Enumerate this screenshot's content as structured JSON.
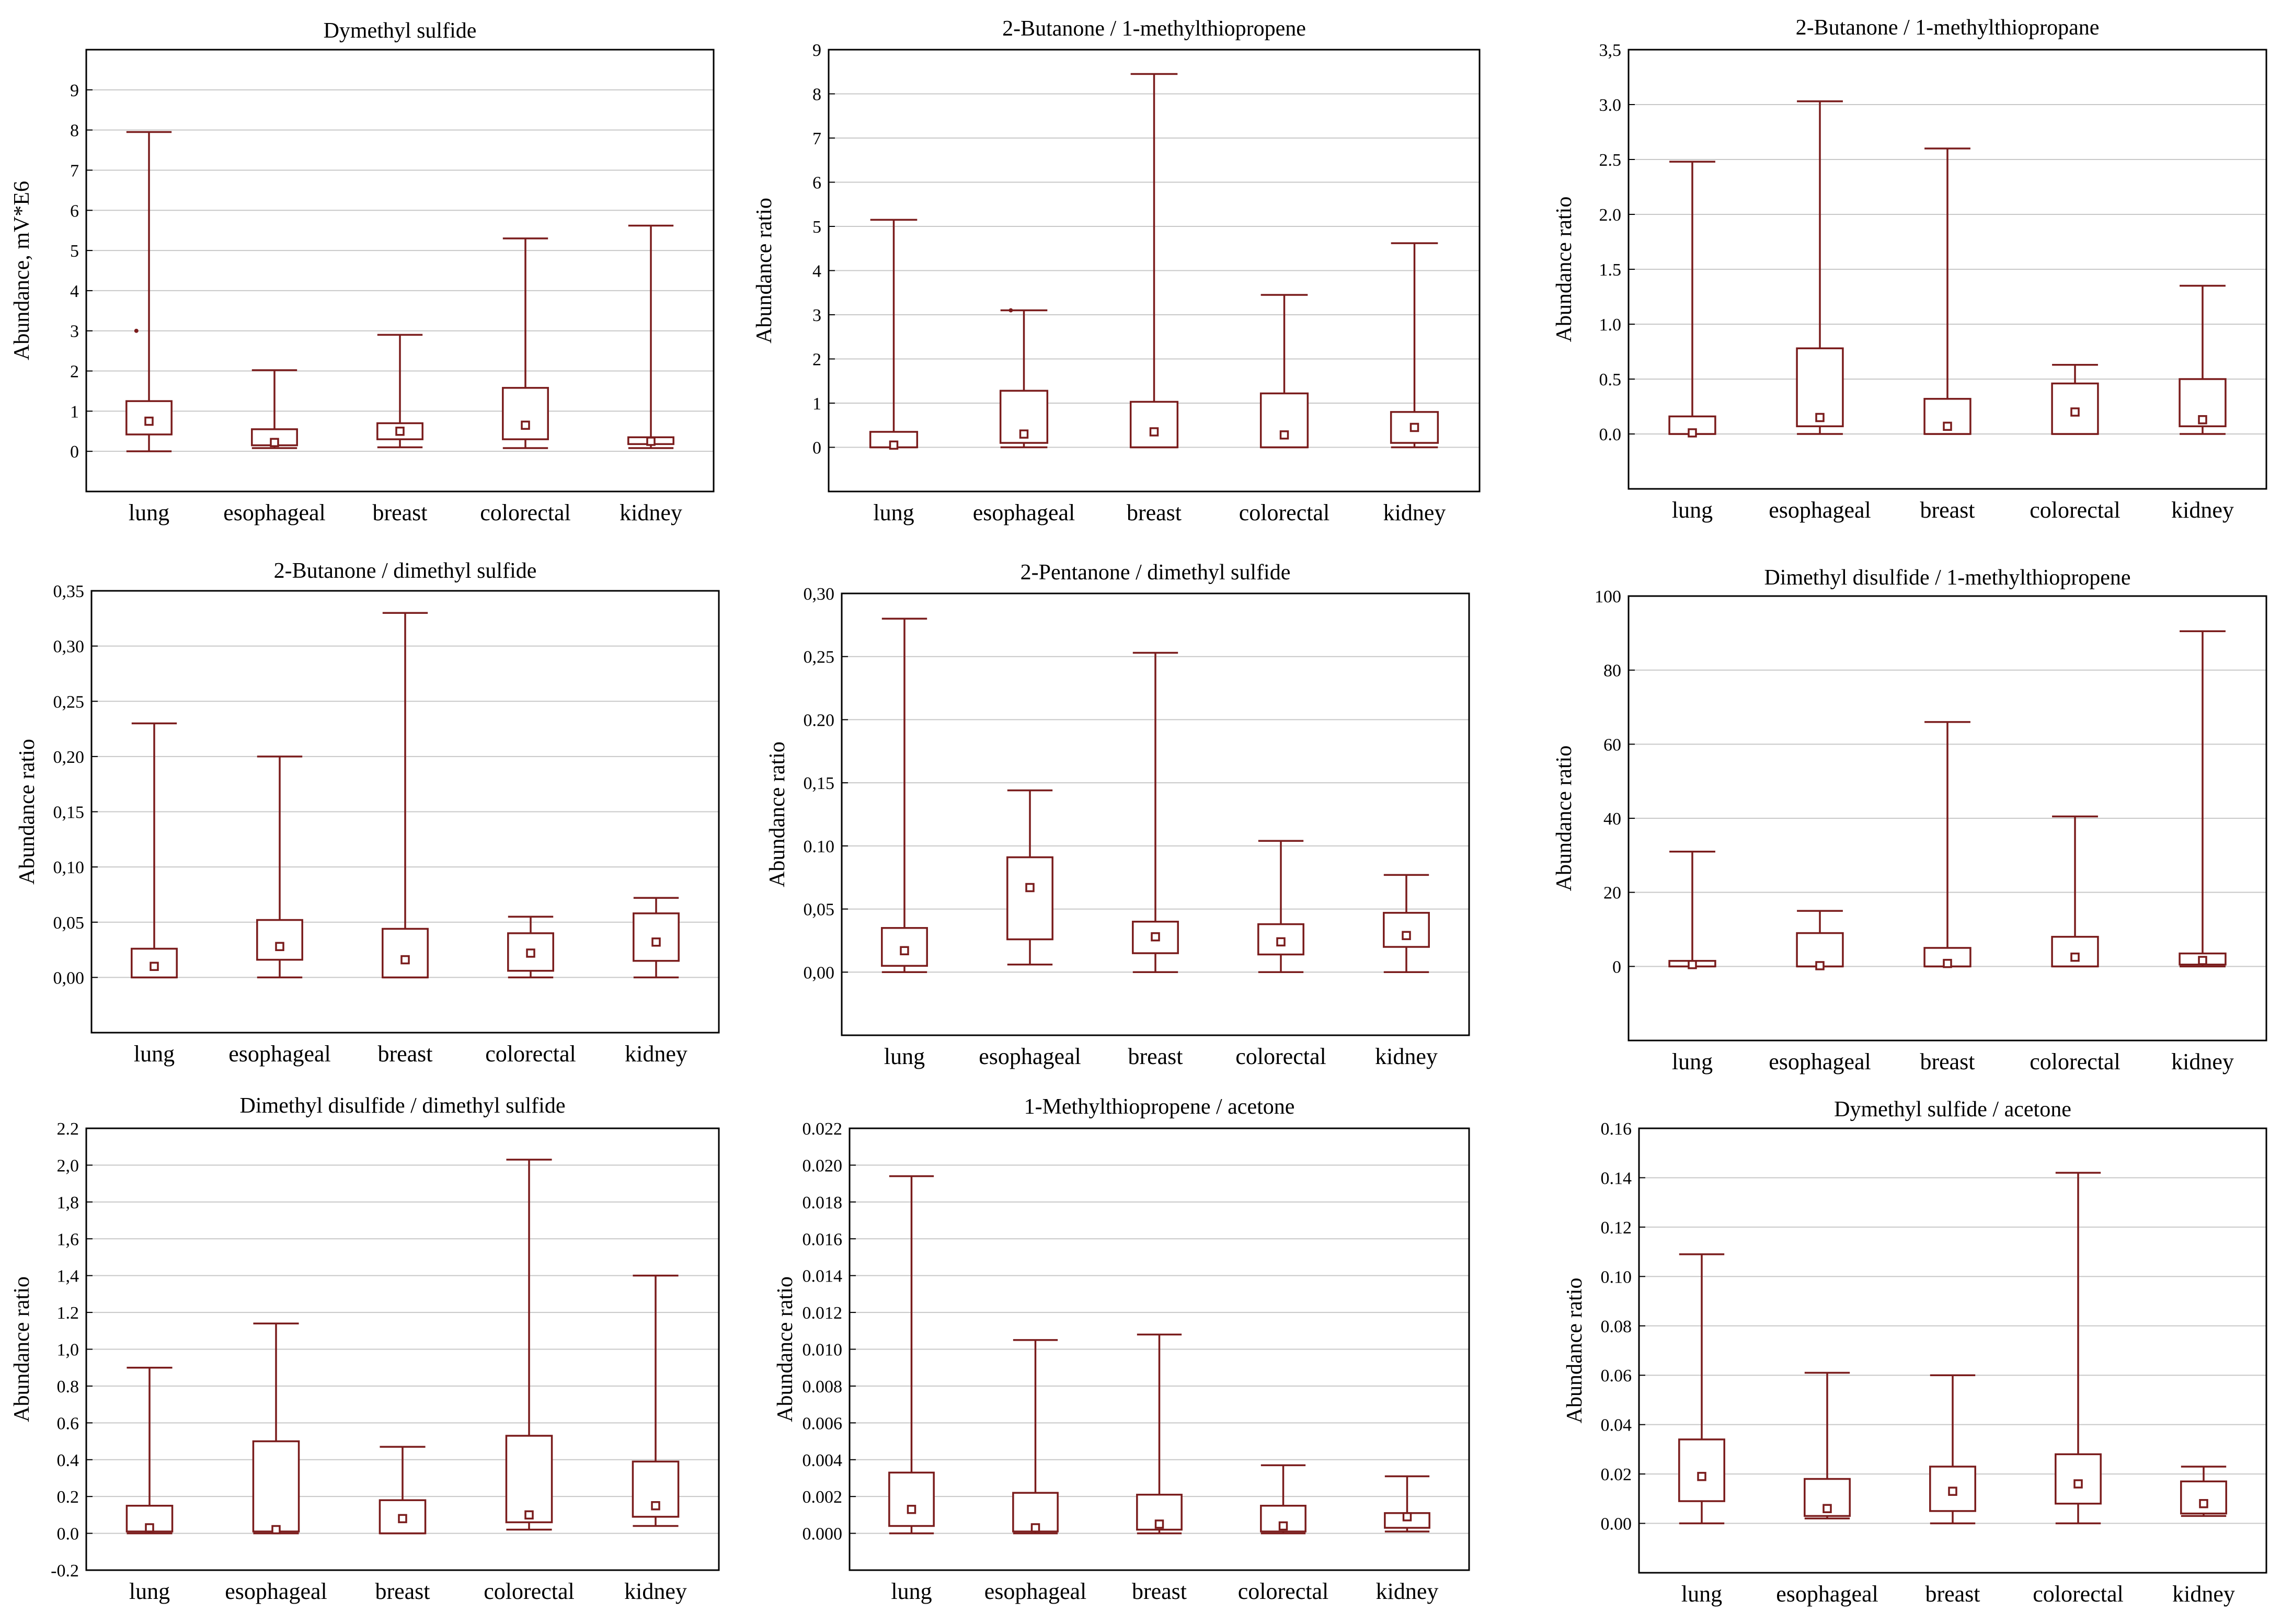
{
  "chart_data": [
    {
      "type": "box",
      "title": "Dymethyl sulfide",
      "ylabel": "Abundance, mV*E6",
      "ylim": [
        -1,
        10
      ],
      "yticks": [
        "0",
        "1",
        "2",
        "3",
        "4",
        "5",
        "6",
        "7",
        "8",
        "9"
      ],
      "categories": [
        "lung",
        "esophageal",
        "breast",
        "colorectal",
        "kidney"
      ],
      "boxes": [
        {
          "min": 0.0,
          "q1": 0.42,
          "q3": 1.25,
          "max": 7.95,
          "mean": 0.75
        },
        {
          "min": 0.08,
          "q1": 0.15,
          "q3": 0.55,
          "max": 2.02,
          "mean": 0.22
        },
        {
          "min": 0.1,
          "q1": 0.3,
          "q3": 0.7,
          "max": 2.9,
          "mean": 0.5
        },
        {
          "min": 0.08,
          "q1": 0.3,
          "q3": 1.58,
          "max": 5.3,
          "mean": 0.65
        },
        {
          "min": 0.08,
          "q1": 0.18,
          "q3": 0.35,
          "max": 5.62,
          "mean": 0.25
        }
      ],
      "outliers": [
        {
          "category": "lung",
          "value": 3.0
        }
      ]
    },
    {
      "type": "box",
      "title": "2-Butanone / 1-methylthiopropene",
      "ylabel": "Abundance ratio",
      "ylim": [
        -1,
        9
      ],
      "yticks": [
        "0",
        "1",
        "2",
        "3",
        "4",
        "5",
        "6",
        "7",
        "8",
        "9"
      ],
      "categories": [
        "lung",
        "esophageal",
        "breast",
        "colorectal",
        "kidney"
      ],
      "boxes": [
        {
          "min": 0.0,
          "q1": 0.0,
          "q3": 0.35,
          "max": 5.15,
          "mean": 0.05
        },
        {
          "min": 0.0,
          "q1": 0.1,
          "q3": 1.28,
          "max": 3.1,
          "mean": 0.3
        },
        {
          "min": 0.0,
          "q1": 0.0,
          "q3": 1.03,
          "max": 8.45,
          "mean": 0.35
        },
        {
          "min": 0.0,
          "q1": 0.0,
          "q3": 1.22,
          "max": 3.45,
          "mean": 0.28
        },
        {
          "min": 0.0,
          "q1": 0.1,
          "q3": 0.8,
          "max": 4.62,
          "mean": 0.45
        }
      ],
      "outliers": [
        {
          "category": "esophageal",
          "value": 3.1
        }
      ]
    },
    {
      "type": "box",
      "title": "2-Butanone / 1-methylthiopropane",
      "ylabel": "Abundance ratio",
      "ylim": [
        -0.5,
        3.5
      ],
      "yticks": [
        "0.0",
        "0.5",
        "1.0",
        "1.5",
        "2.0",
        "2.5",
        "3.0",
        "3,5"
      ],
      "categories": [
        "lung",
        "esophageal",
        "breast",
        "colorectal",
        "kidney"
      ],
      "boxes": [
        {
          "min": 0.0,
          "q1": 0.0,
          "q3": 0.16,
          "max": 2.48,
          "mean": 0.01
        },
        {
          "min": 0.0,
          "q1": 0.07,
          "q3": 0.78,
          "max": 3.03,
          "mean": 0.15
        },
        {
          "min": 0.0,
          "q1": 0.0,
          "q3": 0.32,
          "max": 2.6,
          "mean": 0.07
        },
        {
          "min": 0.0,
          "q1": 0.0,
          "q3": 0.46,
          "max": 0.63,
          "mean": 0.2
        },
        {
          "min": 0.0,
          "q1": 0.07,
          "q3": 0.5,
          "max": 1.35,
          "mean": 0.13
        }
      ],
      "outliers": []
    },
    {
      "type": "box",
      "title": "2-Butanone / dimethyl sulfide",
      "ylabel": "Abundance ratio",
      "ylim": [
        -0.05,
        0.35
      ],
      "yticks": [
        "0,00",
        "0,05",
        "0,10",
        "0,15",
        "0,20",
        "0,25",
        "0,30",
        "0,35"
      ],
      "categories": [
        "lung",
        "esophageal",
        "breast",
        "colorectal",
        "kidney"
      ],
      "boxes": [
        {
          "min": 0.0,
          "q1": 0.0,
          "q3": 0.026,
          "max": 0.23,
          "mean": 0.01
        },
        {
          "min": 0.0,
          "q1": 0.016,
          "q3": 0.052,
          "max": 0.2,
          "mean": 0.028
        },
        {
          "min": 0.0,
          "q1": 0.0,
          "q3": 0.044,
          "max": 0.33,
          "mean": 0.016
        },
        {
          "min": 0.0,
          "q1": 0.006,
          "q3": 0.04,
          "max": 0.055,
          "mean": 0.022
        },
        {
          "min": 0.0,
          "q1": 0.015,
          "q3": 0.058,
          "max": 0.072,
          "mean": 0.032
        }
      ],
      "outliers": []
    },
    {
      "type": "box",
      "title": "2-Pentanone / dimethyl sulfide",
      "ylabel": "Abundance ratio",
      "ylim": [
        -0.05,
        0.3
      ],
      "yticks": [
        "0,00",
        "0,05",
        "0.10",
        "0,15",
        "0.20",
        "0,25",
        "0,30"
      ],
      "categories": [
        "lung",
        "esophageal",
        "breast",
        "colorectal",
        "kidney"
      ],
      "boxes": [
        {
          "min": 0.0,
          "q1": 0.005,
          "q3": 0.035,
          "max": 0.28,
          "mean": 0.017
        },
        {
          "min": 0.006,
          "q1": 0.026,
          "q3": 0.091,
          "max": 0.144,
          "mean": 0.067
        },
        {
          "min": 0.0,
          "q1": 0.015,
          "q3": 0.04,
          "max": 0.253,
          "mean": 0.028
        },
        {
          "min": 0.0,
          "q1": 0.014,
          "q3": 0.038,
          "max": 0.104,
          "mean": 0.024
        },
        {
          "min": 0.0,
          "q1": 0.02,
          "q3": 0.047,
          "max": 0.077,
          "mean": 0.029
        }
      ],
      "outliers": []
    },
    {
      "type": "box",
      "title": "Dimethyl disulfide / 1-methylthiopropene",
      "ylabel": "Abundance ratio",
      "ylim": [
        -20,
        100
      ],
      "yticks": [
        "0",
        "20",
        "40",
        "60",
        "80",
        "100"
      ],
      "categories": [
        "lung",
        "esophageal",
        "breast",
        "colorectal",
        "kidney"
      ],
      "boxes": [
        {
          "min": 0.0,
          "q1": 0.0,
          "q3": 1.5,
          "max": 31,
          "mean": 0.5
        },
        {
          "min": 0.0,
          "q1": 0.0,
          "q3": 9,
          "max": 15,
          "mean": 0.2
        },
        {
          "min": 0.0,
          "q1": 0.0,
          "q3": 5,
          "max": 66,
          "mean": 0.8
        },
        {
          "min": 0.0,
          "q1": 0.0,
          "q3": 8,
          "max": 40.5,
          "mean": 2.5
        },
        {
          "min": 0.0,
          "q1": 0.5,
          "q3": 3.5,
          "max": 90.5,
          "mean": 1.6
        }
      ],
      "outliers": []
    },
    {
      "type": "box",
      "title": "Dimethyl disulfide / dimethyl sulfide",
      "ylabel": "Abundance ratio",
      "ylim": [
        -0.2,
        2.2
      ],
      "yticks": [
        "-0.2",
        "0.0",
        "0.2",
        "0.4",
        "0.6",
        "0.8",
        "1,0",
        "1.2",
        "1,4",
        "1,6",
        "1,8",
        "2,0",
        "2.2"
      ],
      "categories": [
        "lung",
        "esophageal",
        "breast",
        "colorectal",
        "kidney"
      ],
      "boxes": [
        {
          "min": 0.0,
          "q1": 0.01,
          "q3": 0.15,
          "max": 0.9,
          "mean": 0.03
        },
        {
          "min": 0.0,
          "q1": 0.01,
          "q3": 0.5,
          "max": 1.14,
          "mean": 0.02
        },
        {
          "min": 0.0,
          "q1": 0.0,
          "q3": 0.18,
          "max": 0.47,
          "mean": 0.08
        },
        {
          "min": 0.02,
          "q1": 0.06,
          "q3": 0.53,
          "max": 2.03,
          "mean": 0.1
        },
        {
          "min": 0.04,
          "q1": 0.09,
          "q3": 0.39,
          "max": 1.4,
          "mean": 0.15
        }
      ],
      "outliers": []
    },
    {
      "type": "box",
      "title": "1-Methylthiopropene / acetone",
      "ylabel": "Abundance ratio",
      "ylim": [
        -0.002,
        0.022
      ],
      "yticks": [
        "0.000",
        "0.002",
        "0.004",
        "0.006",
        "0.008",
        "0.010",
        "0.012",
        "0.014",
        "0.016",
        "0.018",
        "0.020",
        "0.022"
      ],
      "categories": [
        "lung",
        "esophageal",
        "breast",
        "colorectal",
        "kidney"
      ],
      "boxes": [
        {
          "min": 0.0,
          "q1": 0.0004,
          "q3": 0.0033,
          "max": 0.0194,
          "mean": 0.0013
        },
        {
          "min": 0.0,
          "q1": 0.0001,
          "q3": 0.0022,
          "max": 0.0105,
          "mean": 0.0003
        },
        {
          "min": 0.0,
          "q1": 0.0002,
          "q3": 0.0021,
          "max": 0.0108,
          "mean": 0.0005
        },
        {
          "min": 0.0,
          "q1": 0.0001,
          "q3": 0.0015,
          "max": 0.0037,
          "mean": 0.0004
        },
        {
          "min": 0.0001,
          "q1": 0.0003,
          "q3": 0.0011,
          "max": 0.0031,
          "mean": 0.0009
        }
      ],
      "outliers": []
    },
    {
      "type": "box",
      "title": "Dymethyl sulfide / acetone",
      "ylabel": "Abundance ratio",
      "ylim": [
        -0.02,
        0.16
      ],
      "yticks": [
        "0.00",
        "0.02",
        "0.04",
        "0.06",
        "0.08",
        "0.10",
        "0.12",
        "0.14",
        "0.16"
      ],
      "categories": [
        "lung",
        "esophageal",
        "breast",
        "colorectal",
        "kidney"
      ],
      "boxes": [
        {
          "min": 0.0,
          "q1": 0.009,
          "q3": 0.034,
          "max": 0.109,
          "mean": 0.019
        },
        {
          "min": 0.002,
          "q1": 0.003,
          "q3": 0.018,
          "max": 0.061,
          "mean": 0.006
        },
        {
          "min": 0.0,
          "q1": 0.005,
          "q3": 0.023,
          "max": 0.06,
          "mean": 0.013
        },
        {
          "min": 0.0,
          "q1": 0.008,
          "q3": 0.028,
          "max": 0.142,
          "mean": 0.016
        },
        {
          "min": 0.003,
          "q1": 0.004,
          "q3": 0.017,
          "max": 0.023,
          "mean": 0.008
        }
      ],
      "outliers": []
    }
  ]
}
